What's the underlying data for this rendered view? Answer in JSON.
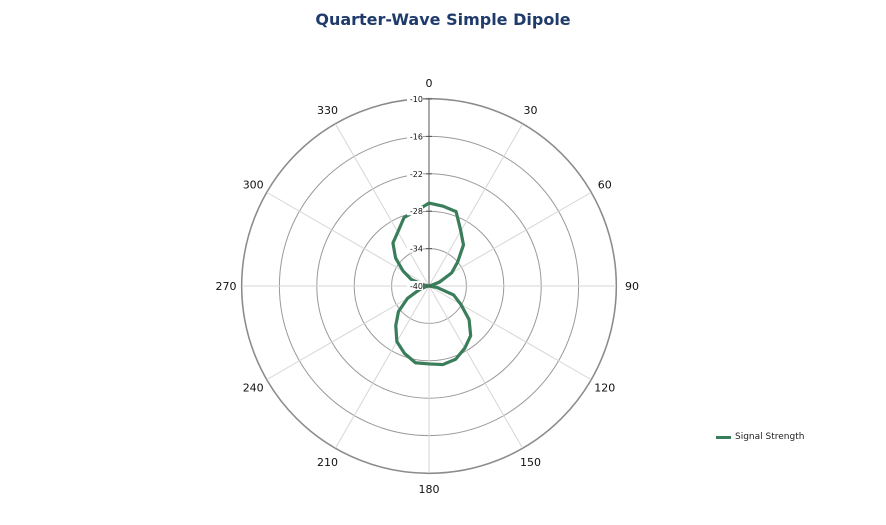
{
  "chart_data": {
    "type": "polar-line",
    "title": "Quarter-Wave Simple Dipole",
    "angle_unit": "degrees",
    "angle_tick_labels": [
      "0",
      "30",
      "60",
      "90",
      "120",
      "150",
      "180",
      "210",
      "240",
      "270",
      "300",
      "330"
    ],
    "radial_tick_labels": [
      "-10",
      "-16",
      "-22",
      "-28",
      "-34",
      "-40"
    ],
    "radial_range": [
      -40,
      -10
    ],
    "grid": true,
    "legend_position": "bottom-right",
    "series": [
      {
        "name": "Signal Strength",
        "color": "#3a7d5a",
        "angles": [
          0,
          10,
          20,
          30,
          40,
          50,
          60,
          70,
          80,
          90,
          100,
          110,
          120,
          130,
          140,
          150,
          160,
          170,
          180,
          190,
          200,
          210,
          220,
          230,
          240,
          250,
          260,
          270,
          280,
          290,
          300,
          310,
          320,
          330,
          340,
          350
        ],
        "values": [
          -26.7,
          -27.0,
          -27.3,
          -29.8,
          -31.4,
          -34.0,
          -35.8,
          -38.2,
          -39.8,
          -40.0,
          -38.7,
          -35.8,
          -34.1,
          -31.6,
          -29.6,
          -28.5,
          -27.5,
          -27.2,
          -27.5,
          -27.5,
          -28.5,
          -29.7,
          -31.7,
          -33.6,
          -36.0,
          -38.4,
          -39.6,
          -40.0,
          -39.2,
          -37.0,
          -35.2,
          -33.0,
          -31.0,
          -30.0,
          -28.3,
          -27.8
        ]
      }
    ]
  }
}
